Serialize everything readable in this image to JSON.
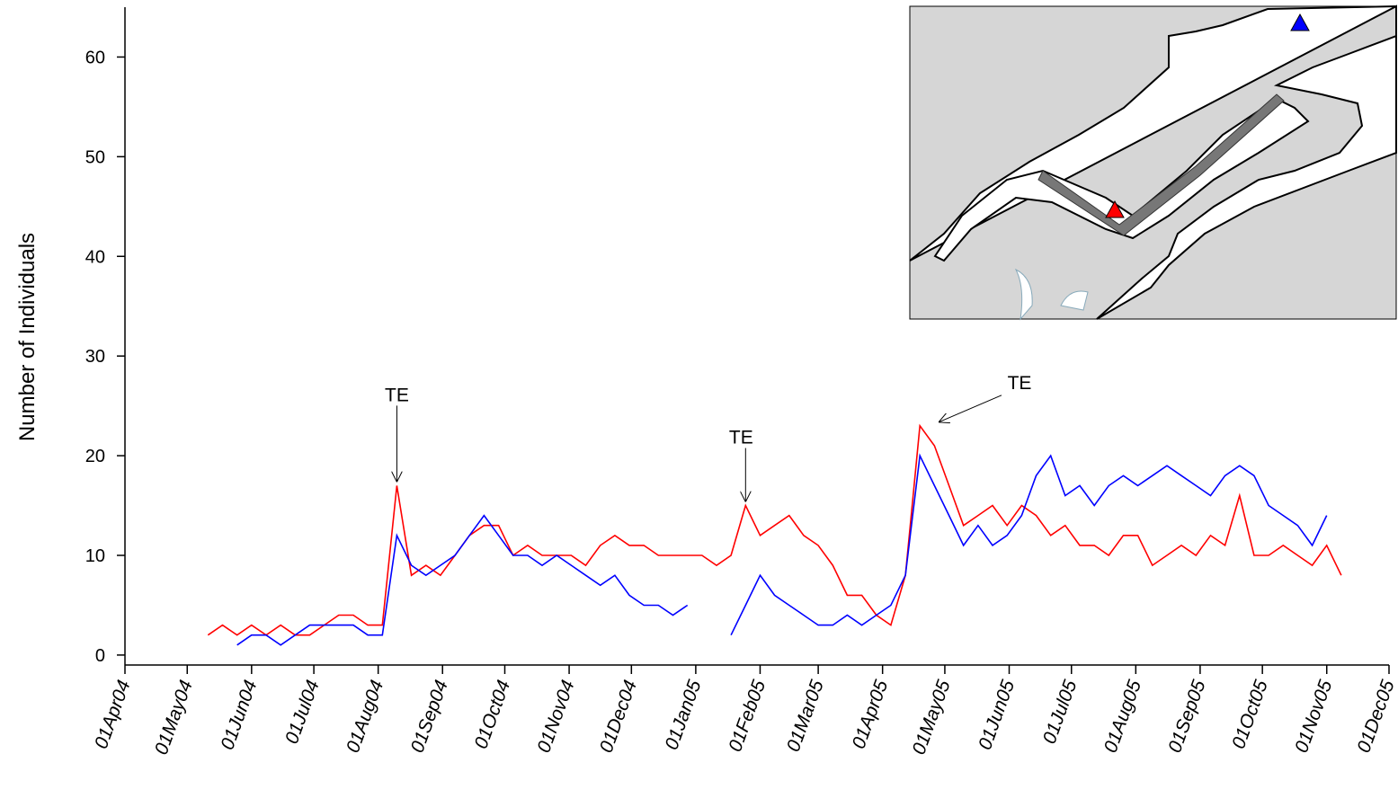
{
  "chart_data": {
    "type": "line",
    "ylabel": "Number of Individuals",
    "xlim": [
      "2004-04-01",
      "2005-12-01"
    ],
    "xticks": [
      {
        "value": "2004-04-01",
        "label": "01Apr04"
      },
      {
        "value": "2004-05-01",
        "label": "01May04"
      },
      {
        "value": "2004-06-01",
        "label": "01Jun04"
      },
      {
        "value": "2004-07-01",
        "label": "01Jul04"
      },
      {
        "value": "2004-08-01",
        "label": "01Aug04"
      },
      {
        "value": "2004-09-01",
        "label": "01Sep04"
      },
      {
        "value": "2004-10-01",
        "label": "01Oct04"
      },
      {
        "value": "2004-11-01",
        "label": "01Nov04"
      },
      {
        "value": "2004-12-01",
        "label": "01Dec04"
      },
      {
        "value": "2005-01-01",
        "label": "01Jan05"
      },
      {
        "value": "2005-02-01",
        "label": "01Feb05"
      },
      {
        "value": "2005-03-01",
        "label": "01Mar05"
      },
      {
        "value": "2005-04-01",
        "label": "01Apr05"
      },
      {
        "value": "2005-05-01",
        "label": "01May05"
      },
      {
        "value": "2005-06-01",
        "label": "01Jun05"
      },
      {
        "value": "2005-07-01",
        "label": "01Jul05"
      },
      {
        "value": "2005-08-01",
        "label": "01Aug05"
      },
      {
        "value": "2005-09-01",
        "label": "01Sep05"
      },
      {
        "value": "2005-10-01",
        "label": "01Oct05"
      },
      {
        "value": "2005-11-01",
        "label": "01Nov05"
      },
      {
        "value": "2005-12-01",
        "label": "01Dec05"
      }
    ],
    "ylim": [
      -1,
      65
    ],
    "yticks": [
      0,
      10,
      20,
      30,
      40,
      50,
      60
    ],
    "x": [
      "2004-05-11",
      "2004-05-18",
      "2004-05-25",
      "2004-06-01",
      "2004-06-08",
      "2004-06-15",
      "2004-06-22",
      "2004-06-29",
      "2004-07-06",
      "2004-07-13",
      "2004-07-20",
      "2004-07-27",
      "2004-08-03",
      "2004-08-10",
      "2004-08-17",
      "2004-08-24",
      "2004-08-31",
      "2004-09-07",
      "2004-09-14",
      "2004-09-21",
      "2004-09-28",
      "2004-10-05",
      "2004-10-12",
      "2004-10-19",
      "2004-10-26",
      "2004-11-02",
      "2004-11-09",
      "2004-11-16",
      "2004-11-23",
      "2004-11-30",
      "2004-12-07",
      "2004-12-14",
      "2004-12-21",
      "2004-12-28",
      "2005-01-04",
      "2005-01-11",
      "2005-01-18",
      "2005-01-25",
      "2005-02-01",
      "2005-02-08",
      "2005-02-15",
      "2005-02-22",
      "2005-03-01",
      "2005-03-08",
      "2005-03-15",
      "2005-03-22",
      "2005-03-29",
      "2005-04-05",
      "2005-04-12",
      "2005-04-19",
      "2005-04-26",
      "2005-05-03",
      "2005-05-10",
      "2005-05-17",
      "2005-05-24",
      "2005-05-31",
      "2005-06-07",
      "2005-06-14",
      "2005-06-21",
      "2005-06-28",
      "2005-07-05",
      "2005-07-12",
      "2005-07-19",
      "2005-07-26",
      "2005-08-02",
      "2005-08-09",
      "2005-08-16",
      "2005-08-23",
      "2005-08-30",
      "2005-09-06",
      "2005-09-13",
      "2005-09-20",
      "2005-09-27",
      "2005-10-04",
      "2005-10-11",
      "2005-10-18",
      "2005-10-25",
      "2005-11-01",
      "2005-11-08"
    ],
    "series": [
      {
        "color": "#ff0000",
        "values": [
          2,
          3,
          2,
          3,
          2,
          3,
          2,
          2,
          3,
          4,
          4,
          3,
          3,
          17,
          8,
          9,
          8,
          10,
          12,
          13,
          13,
          10,
          11,
          10,
          10,
          10,
          9,
          11,
          12,
          11,
          11,
          10,
          10,
          10,
          10,
          9,
          10,
          15,
          12,
          13,
          14,
          12,
          11,
          9,
          6,
          6,
          4,
          3,
          8,
          23,
          21,
          17,
          13,
          14,
          15,
          13,
          15,
          14,
          12,
          13,
          11,
          11,
          10,
          12,
          12,
          9,
          10,
          11,
          10,
          12,
          11,
          16,
          10,
          10,
          11,
          10,
          9,
          11,
          8
        ]
      },
      {
        "color": "#0000ff",
        "values": [
          null,
          null,
          1,
          2,
          2,
          1,
          2,
          3,
          3,
          3,
          3,
          2,
          2,
          12,
          9,
          8,
          9,
          10,
          12,
          14,
          12,
          10,
          10,
          9,
          10,
          9,
          8,
          7,
          8,
          6,
          5,
          5,
          4,
          5,
          null,
          null,
          2,
          5,
          8,
          6,
          5,
          4,
          3,
          3,
          4,
          3,
          4,
          5,
          8,
          20,
          17,
          14,
          11,
          13,
          11,
          12,
          14,
          18,
          20,
          16,
          17,
          15,
          17,
          18,
          17,
          18,
          19,
          18,
          17,
          16,
          18,
          19,
          18,
          15,
          14,
          13,
          11,
          14,
          null
        ]
      }
    ],
    "annotations": [
      {
        "text": "TE",
        "x": "2004-08-10",
        "y": 17
      },
      {
        "text": "TE",
        "x": "2005-01-25",
        "y": 15
      },
      {
        "text": "TE",
        "x": "2005-04-28",
        "y": 23
      }
    ]
  }
}
